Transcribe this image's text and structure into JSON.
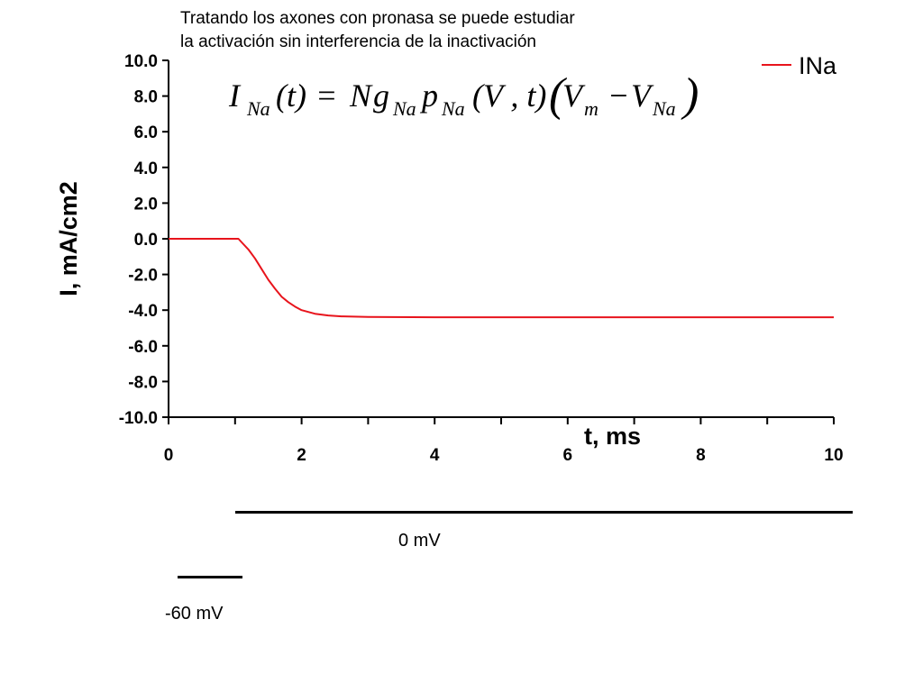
{
  "caption": {
    "line1": "Tratando los axones con pronasa se puede estudiar",
    "line2": "la activación sin interferencia de la inactivación"
  },
  "equation": {
    "I": "I",
    "I_sub": "Na",
    "t_arg": "(t)",
    "equals": "=",
    "N": "N",
    "g": "g",
    "g_sub": "Na",
    "p": "p",
    "p_sub": "Na",
    "p_args": "(V , t)",
    "open_paren": "(",
    "Vm": "V",
    "Vm_sub": "m",
    "minus": "−",
    "VNa": "V",
    "VNa_sub": "Na",
    "close_paren": ")"
  },
  "protocol": {
    "high_label": "0 mV",
    "low_label": "-60 mV"
  },
  "chart_data": {
    "type": "line",
    "title": "",
    "xlabel": "t, ms",
    "ylabel": "I, mA/cm2",
    "xlim": [
      0,
      10
    ],
    "ylim": [
      -10.0,
      10.0
    ],
    "x_ticks": [
      0,
      2,
      4,
      6,
      8,
      10
    ],
    "x_tick_labels": [
      "0",
      "2",
      "4",
      "6",
      "8",
      "10"
    ],
    "x_minor_ticks": [
      1,
      3,
      5,
      7,
      9
    ],
    "y_ticks": [
      10,
      8,
      6,
      4,
      2,
      0,
      -2,
      -4,
      -6,
      -8,
      -10
    ],
    "y_tick_labels": [
      "10.0",
      "8.0",
      "6.0",
      "4.0",
      "2.0",
      "0.0",
      "-2.0",
      "-4.0",
      "-6.0",
      "-8.0",
      "-10.0"
    ],
    "grid": false,
    "legend_position": "top-right",
    "series": [
      {
        "name": "INa",
        "color": "#e8141c",
        "x": [
          0,
          1.05,
          1.1,
          1.2,
          1.3,
          1.4,
          1.5,
          1.6,
          1.7,
          1.8,
          1.9,
          2.0,
          2.1,
          2.2,
          2.4,
          2.6,
          3.0,
          4.0,
          6.0,
          8.0,
          10.0
        ],
        "y": [
          0,
          0,
          -0.2,
          -0.6,
          -1.1,
          -1.7,
          -2.3,
          -2.8,
          -3.25,
          -3.55,
          -3.8,
          -4.0,
          -4.1,
          -4.2,
          -4.3,
          -4.35,
          -4.38,
          -4.4,
          -4.4,
          -4.4,
          -4.4
        ]
      }
    ]
  }
}
